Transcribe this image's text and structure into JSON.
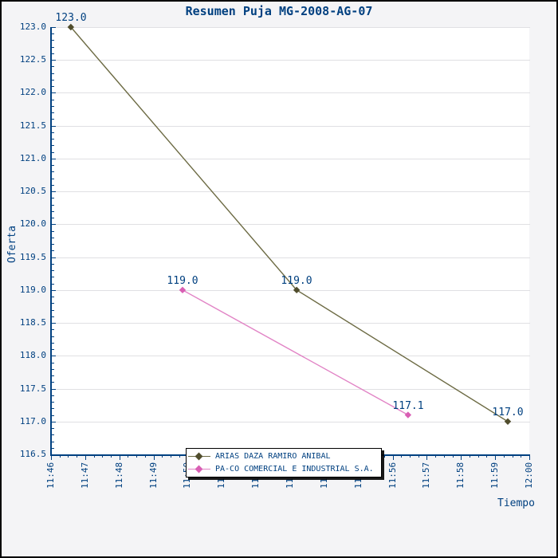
{
  "title": "Resumen Puja MG-2008-AG-07",
  "colors": {
    "text_navy": "#004080",
    "axis": "#004080",
    "page_background": "#f4f4f6",
    "plot_background": "#ffffff",
    "gridline": "#e0e0e3",
    "frame_border": "#000000",
    "legend_background": "#ffffff"
  },
  "chart_data": {
    "type": "line",
    "title": "Resumen Puja MG-2008-AG-07",
    "xlabel": "Tiempo",
    "ylabel": "Oferta",
    "grid": "horizontal-only",
    "legend_position": "bottom-center",
    "x_axis": {
      "kind": "time",
      "start_label": "11:46",
      "end_label": "12:00",
      "tick_labels": [
        "11:46",
        "11:47",
        "11:48",
        "11:49",
        "11:50",
        "11:51",
        "11:52",
        "11:53",
        "11:54",
        "11:55",
        "11:56",
        "11:57",
        "11:58",
        "11:59",
        "12:00"
      ],
      "range_minutes": [
        0,
        14
      ],
      "minor_tick_minutes": 0.25
    },
    "y_axis": {
      "tick_labels": [
        "116.5",
        "117.0",
        "117.5",
        "118.0",
        "118.5",
        "119.0",
        "119.5",
        "120.0",
        "120.5",
        "121.0",
        "121.5",
        "122.0",
        "122.5",
        "123.0"
      ],
      "tick_values": [
        116.5,
        117.0,
        117.5,
        118.0,
        118.5,
        119.0,
        119.5,
        120.0,
        120.5,
        121.0,
        121.5,
        122.0,
        122.5,
        123.0
      ],
      "range": [
        116.5,
        123.0
      ],
      "minor_step": 0.1
    },
    "series": [
      {
        "name": "ARIAS DAZA RAMIRO ANIBAL",
        "line_color": "#6c6a43",
        "marker_color": "#504d2c",
        "marker": "diamond",
        "points": [
          {
            "minutes_from_start": 0.58,
            "value": 123.0,
            "label": "123.0"
          },
          {
            "minutes_from_start": 7.19,
            "value": 119.0,
            "label": "119.0"
          },
          {
            "minutes_from_start": 13.37,
            "value": 117.0,
            "label": "117.0"
          }
        ]
      },
      {
        "name": "PA-CO COMERCIAL E INDUSTRIAL S.A.",
        "line_color": "#e183c5",
        "marker_color": "#d95fb4",
        "marker": "diamond",
        "points": [
          {
            "minutes_from_start": 3.85,
            "value": 119.0,
            "label": "119.0"
          },
          {
            "minutes_from_start": 10.45,
            "value": 117.1,
            "label": "117.1"
          }
        ]
      }
    ]
  }
}
